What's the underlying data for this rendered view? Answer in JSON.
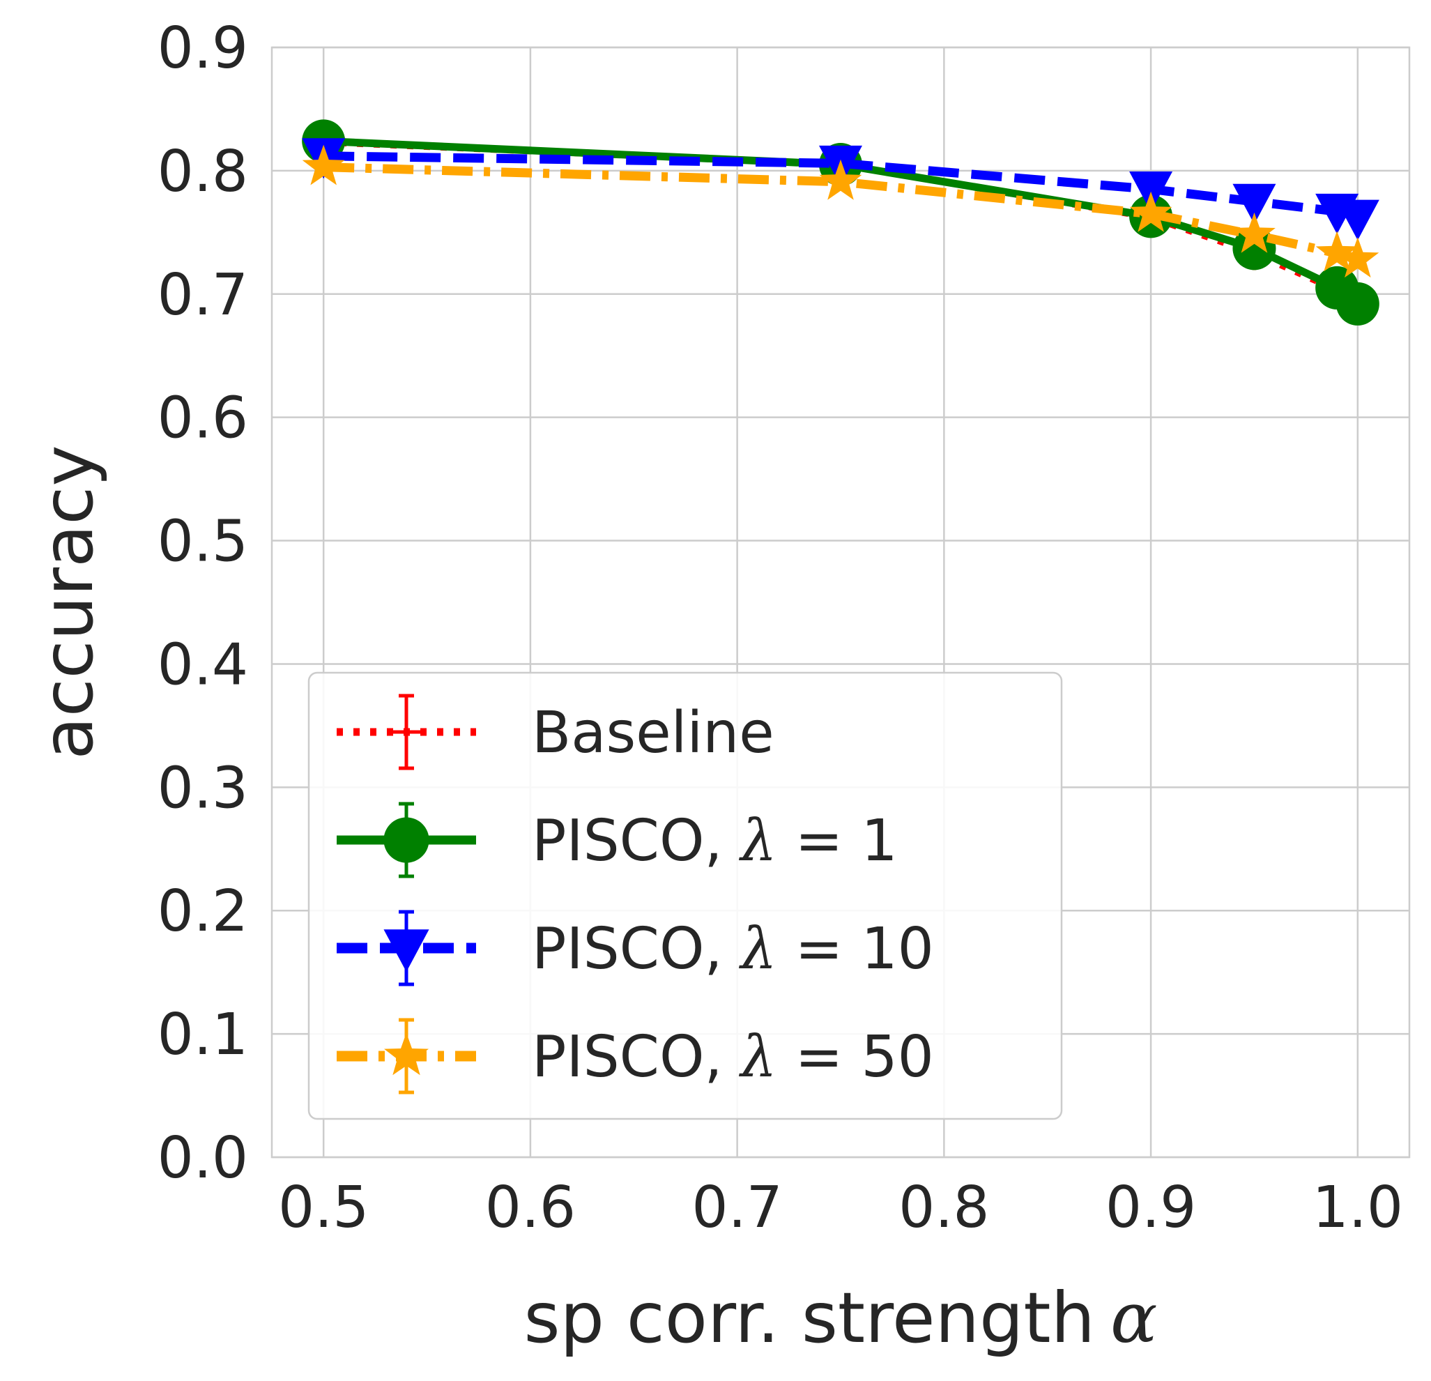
{
  "chart_data": {
    "type": "line",
    "xlabel": "sp corr. strength",
    "xlabel_symbol": "α",
    "ylabel": "accuracy",
    "xlim": [
      0.475,
      1.025
    ],
    "ylim": [
      0.0,
      0.9
    ],
    "xticks": [
      0.5,
      0.6,
      0.7,
      0.8,
      0.9,
      1.0
    ],
    "xtick_labels": [
      "0.5",
      "0.6",
      "0.7",
      "0.8",
      "0.9",
      "1.0"
    ],
    "yticks": [
      0.0,
      0.1,
      0.2,
      0.3,
      0.4,
      0.5,
      0.6,
      0.7,
      0.8,
      0.9
    ],
    "ytick_labels": [
      "0.0",
      "0.1",
      "0.2",
      "0.3",
      "0.4",
      "0.5",
      "0.6",
      "0.7",
      "0.8",
      "0.9"
    ],
    "grid": true,
    "legend_position": "lower-left",
    "x": [
      0.5,
      0.75,
      0.9,
      0.95,
      0.99,
      1.0
    ],
    "series": [
      {
        "name": "Baseline",
        "legend_prefix": "Baseline",
        "lambda_value": "",
        "color": "#ff0000",
        "linestyle": "dotted",
        "marker": "plus",
        "values": [
          0.823,
          0.805,
          0.762,
          0.733,
          0.703,
          0.693
        ]
      },
      {
        "name": "PISCO, λ = 1",
        "legend_prefix": "PISCO, ",
        "lambda_value": "1",
        "color": "#008000",
        "linestyle": "solid",
        "marker": "circle",
        "values": [
          0.824,
          0.805,
          0.763,
          0.737,
          0.705,
          0.692
        ]
      },
      {
        "name": "PISCO, λ = 10",
        "legend_prefix": "PISCO, ",
        "lambda_value": "10",
        "color": "#0000ff",
        "linestyle": "dashed",
        "marker": "triangle-down",
        "values": [
          0.812,
          0.806,
          0.785,
          0.775,
          0.767,
          0.762
        ]
      },
      {
        "name": "PISCO, λ = 50",
        "legend_prefix": "PISCO, ",
        "lambda_value": "50",
        "color": "#ffa500",
        "linestyle": "dashdot",
        "marker": "star",
        "values": [
          0.803,
          0.791,
          0.765,
          0.748,
          0.733,
          0.728
        ]
      }
    ]
  }
}
